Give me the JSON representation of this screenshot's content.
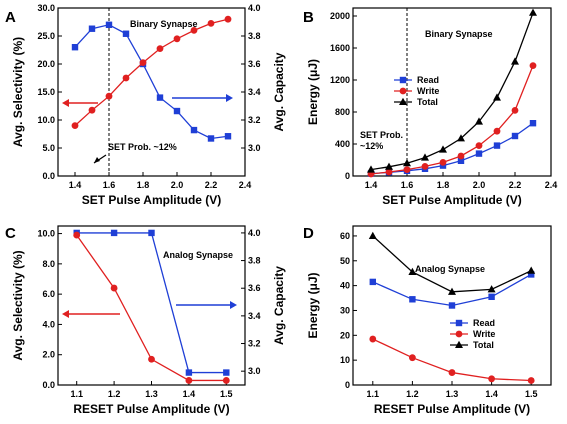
{
  "chart_data": [
    {
      "panel": "A",
      "type": "line",
      "xlabel": "SET Pulse Amplitude (V)",
      "ylabel": "Avg. Selectivity (%)",
      "y2label": "Avg. Capacity",
      "annotation": "Binary Synapse",
      "marker_text": "SET Prob. ~12%",
      "xlim": [
        1.3,
        2.4
      ],
      "ylim": [
        0,
        30
      ],
      "y2lim": [
        2.8,
        4.0
      ],
      "xticks": [
        "1.4",
        "1.6",
        "1.8",
        "2.0",
        "2.2",
        "2.4"
      ],
      "yticks": [
        "0.0",
        "5.0",
        "10.0",
        "15.0",
        "20.0",
        "25.0",
        "30.0"
      ],
      "y2ticks": [
        "3.0",
        "3.2",
        "3.4",
        "3.6",
        "3.8",
        "4.0"
      ],
      "vline_x": 1.6,
      "series": [
        {
          "axis": "left",
          "color": "#1f3fd6",
          "marker": "square",
          "x": [
            1.4,
            1.5,
            1.6,
            1.7,
            1.8,
            1.9,
            2.0,
            2.1,
            2.2,
            2.3
          ],
          "values": [
            23.0,
            26.3,
            27.0,
            25.4,
            20.0,
            14.0,
            11.6,
            8.2,
            6.7,
            7.1
          ]
        },
        {
          "axis": "right",
          "color": "#e02020",
          "marker": "circle",
          "x": [
            1.4,
            1.5,
            1.6,
            1.7,
            1.8,
            1.9,
            2.0,
            2.1,
            2.2,
            2.3
          ],
          "values": [
            3.16,
            3.27,
            3.37,
            3.5,
            3.61,
            3.71,
            3.78,
            3.84,
            3.89,
            3.92
          ]
        }
      ]
    },
    {
      "panel": "B",
      "type": "line",
      "xlabel": "SET Pulse Amplitude (V)",
      "ylabel": "Energy (μJ)",
      "annotation": "Binary Synapse",
      "marker_text": "SET Prob.\n~12%",
      "xlim": [
        1.3,
        2.4
      ],
      "ylim": [
        0,
        2100
      ],
      "xticks": [
        "1.4",
        "1.6",
        "1.8",
        "2.0",
        "2.2",
        "2.4"
      ],
      "yticks": [
        "0",
        "400",
        "800",
        "1200",
        "1600",
        "2000"
      ],
      "vline_x": 1.6,
      "legend": "center-left",
      "series": [
        {
          "name": "Read",
          "color": "#1f3fd6",
          "marker": "square",
          "x": [
            1.4,
            1.5,
            1.6,
            1.7,
            1.8,
            1.9,
            2.0,
            2.1,
            2.2,
            2.3
          ],
          "values": [
            30,
            45,
            65,
            90,
            130,
            190,
            280,
            380,
            500,
            660
          ]
        },
        {
          "name": "Write",
          "color": "#e02020",
          "marker": "circle",
          "x": [
            1.4,
            1.5,
            1.6,
            1.7,
            1.8,
            1.9,
            2.0,
            2.1,
            2.2,
            2.3
          ],
          "values": [
            25,
            50,
            80,
            120,
            170,
            250,
            380,
            560,
            820,
            1380
          ]
        },
        {
          "name": "Total",
          "color": "#000000",
          "marker": "triangle",
          "x": [
            1.4,
            1.5,
            1.6,
            1.7,
            1.8,
            1.9,
            2.0,
            2.1,
            2.2,
            2.3
          ],
          "values": [
            80,
            115,
            160,
            230,
            330,
            470,
            680,
            980,
            1430,
            2040
          ]
        }
      ]
    },
    {
      "panel": "C",
      "type": "line",
      "xlabel": "RESET Pulse Amplitude (V)",
      "ylabel": "Avg. Selectivity (%)",
      "y2label": "Avg. Capacity",
      "annotation": "Analog Synapse",
      "xlim": [
        1.05,
        1.55
      ],
      "ylim": [
        0,
        10.5
      ],
      "y2lim": [
        2.9,
        4.05
      ],
      "xticks": [
        "1.1",
        "1.2",
        "1.3",
        "1.4",
        "1.5"
      ],
      "yticks": [
        "0.0",
        "2.0",
        "4.0",
        "6.0",
        "8.0",
        "10.0"
      ],
      "y2ticks": [
        "3.0",
        "3.2",
        "3.4",
        "3.6",
        "3.8",
        "4.0"
      ],
      "series": [
        {
          "axis": "right",
          "color": "#1f3fd6",
          "marker": "square",
          "x": [
            1.1,
            1.2,
            1.3,
            1.4,
            1.5
          ],
          "values": [
            4.0,
            4.0,
            4.0,
            2.99,
            2.99
          ]
        },
        {
          "axis": "left",
          "color": "#e02020",
          "marker": "circle",
          "x": [
            1.1,
            1.2,
            1.3,
            1.4,
            1.5
          ],
          "values": [
            9.9,
            6.4,
            1.7,
            0.3,
            0.3
          ]
        }
      ]
    },
    {
      "panel": "D",
      "type": "line",
      "xlabel": "RESET Pulse Amplitude (V)",
      "ylabel": "Energy (μJ)",
      "annotation": "Analog Synapse",
      "xlim": [
        1.05,
        1.55
      ],
      "ylim": [
        0,
        64
      ],
      "xticks": [
        "1.1",
        "1.2",
        "1.3",
        "1.4",
        "1.5"
      ],
      "yticks": [
        "0",
        "10",
        "20",
        "30",
        "40",
        "50",
        "60"
      ],
      "legend": "center-right",
      "series": [
        {
          "name": "Read",
          "color": "#1f3fd6",
          "marker": "square",
          "x": [
            1.1,
            1.2,
            1.3,
            1.4,
            1.5
          ],
          "values": [
            41.5,
            34.5,
            32.0,
            35.5,
            44.5
          ]
        },
        {
          "name": "Write",
          "color": "#e02020",
          "marker": "circle",
          "x": [
            1.1,
            1.2,
            1.3,
            1.4,
            1.5
          ],
          "values": [
            18.5,
            11.0,
            5.0,
            2.5,
            1.8
          ]
        },
        {
          "name": "Total",
          "color": "#000000",
          "marker": "triangle",
          "x": [
            1.1,
            1.2,
            1.3,
            1.4,
            1.5
          ],
          "values": [
            60.0,
            45.5,
            37.5,
            38.5,
            46.0
          ]
        }
      ]
    }
  ]
}
